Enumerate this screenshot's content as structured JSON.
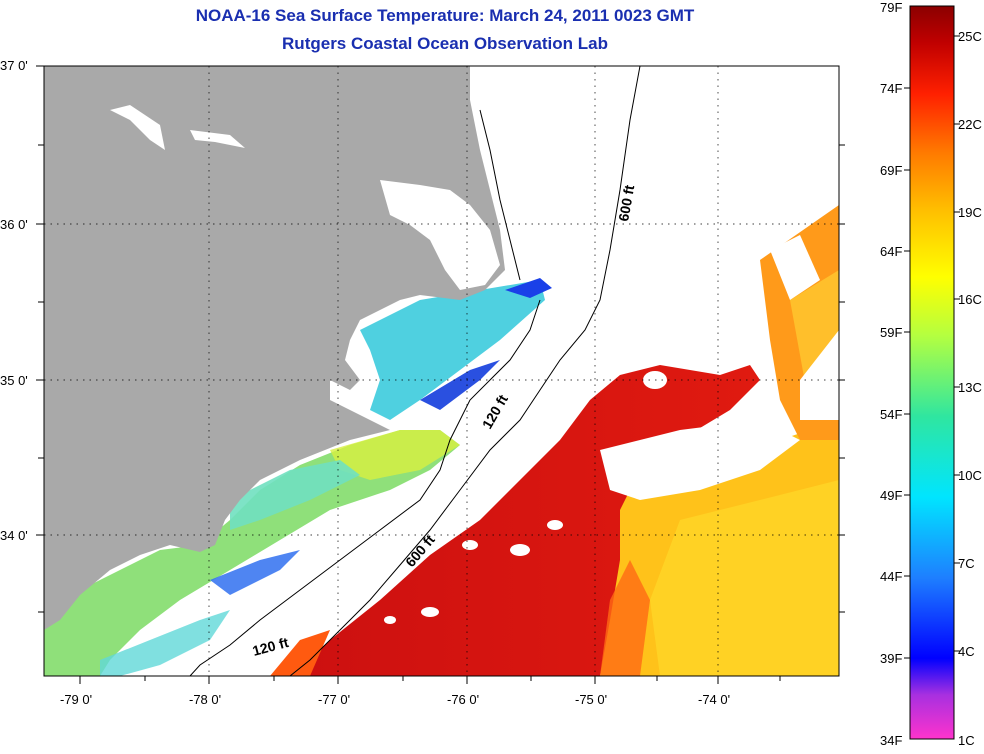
{
  "header": {
    "title_line1": "NOAA-16 Sea Surface Temperature:  March 24, 2011 0023 GMT",
    "title_line2": "Rutgers Coastal Ocean Observation Lab"
  },
  "map": {
    "lat_labels": [
      "37 0'",
      "36 0'",
      "35 0'",
      "34 0'"
    ],
    "lon_labels": [
      "-79 0'",
      "-78 0'",
      "-77 0'",
      "-76 0'",
      "-75 0'",
      "-74 0'"
    ],
    "isobath_labels": [
      "600 ft",
      "120 ft",
      "600 ft",
      "120 ft"
    ],
    "colors": {
      "land": "#a9a9a9",
      "cloud": "#ffffff",
      "warm_core": "#cc1010",
      "warm_edge": "#ff6a00",
      "gulf_yellow": "#ffd21a",
      "shelf_green": "#8ee07a",
      "nearshore_cyan": "#4fd0e0",
      "cold_blue": "#2a50e0"
    }
  },
  "colorbar": {
    "fahrenheit_labels": [
      "79F",
      "74F",
      "69F",
      "64F",
      "59F",
      "54F",
      "49F",
      "44F",
      "39F",
      "34F"
    ],
    "celsius_labels": [
      "25C",
      "22C",
      "19C",
      "16C",
      "13C",
      "10C",
      "7C",
      "4C",
      "1C"
    ],
    "gradient_colors": [
      "#ff33cc",
      "#8a2be2",
      "#0000ff",
      "#1e90ff",
      "#00e5ff",
      "#2fe6a0",
      "#9aff50",
      "#e6ff00",
      "#ffd700",
      "#ff9900",
      "#ff3300",
      "#cc0000",
      "#990000"
    ]
  }
}
